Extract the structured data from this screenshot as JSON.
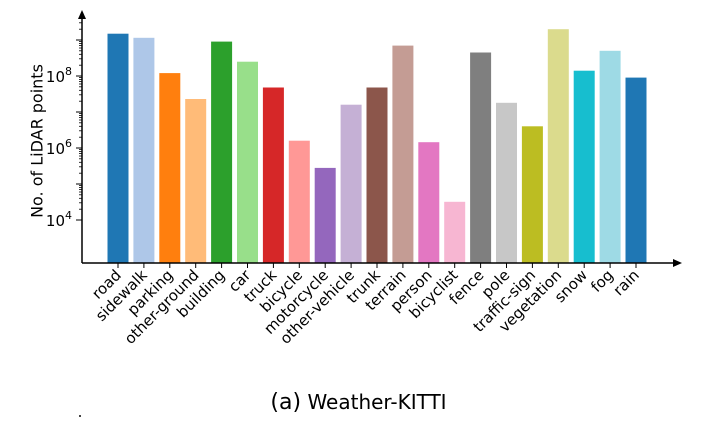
{
  "chart_data": {
    "type": "bar",
    "ylabel": "No. of LiDAR points",
    "yscale": "log",
    "ylim": [
      20000,
      10000000000
    ],
    "yticks": [
      {
        "base": "10",
        "exp": "4",
        "value": 10000
      },
      {
        "base": "10",
        "exp": "6",
        "value": 1000000
      },
      {
        "base": "10",
        "exp": "8",
        "value": 100000000
      }
    ],
    "categories": [
      "road",
      "sidewalk",
      "parking",
      "other-ground",
      "building",
      "car",
      "truck",
      "bicycle",
      "motorcycle",
      "other-vehicle",
      "trunk",
      "terrain",
      "person",
      "bicyclist",
      "fence",
      "pole",
      "traffic-sign",
      "vegetation",
      "snow",
      "fog",
      "rain"
    ],
    "values": [
      1500000000,
      1150000000,
      120000000,
      23000000,
      900000000,
      250000000,
      48000000,
      1600000,
      280000,
      16000000,
      48000000,
      700000000,
      1450000,
      32000,
      450000000,
      18000000,
      4000000,
      2000000000,
      140000000,
      500000000,
      90000000
    ],
    "colors": [
      "#1f77b4",
      "#aec7e8",
      "#ff7f0e",
      "#ffbb78",
      "#2ca02c",
      "#98df8a",
      "#d62728",
      "#ff9896",
      "#9467bd",
      "#c5b0d5",
      "#8c564b",
      "#c49c94",
      "#e377c2",
      "#f7b6d2",
      "#7f7f7f",
      "#c7c7c7",
      "#bcbd22",
      "#dbdb8d",
      "#17becf",
      "#9edae5",
      "#1f77b4"
    ],
    "grid": false,
    "legend": "none"
  },
  "caption": {
    "prefix": "(a)",
    "title": "Weather-KITTI"
  }
}
